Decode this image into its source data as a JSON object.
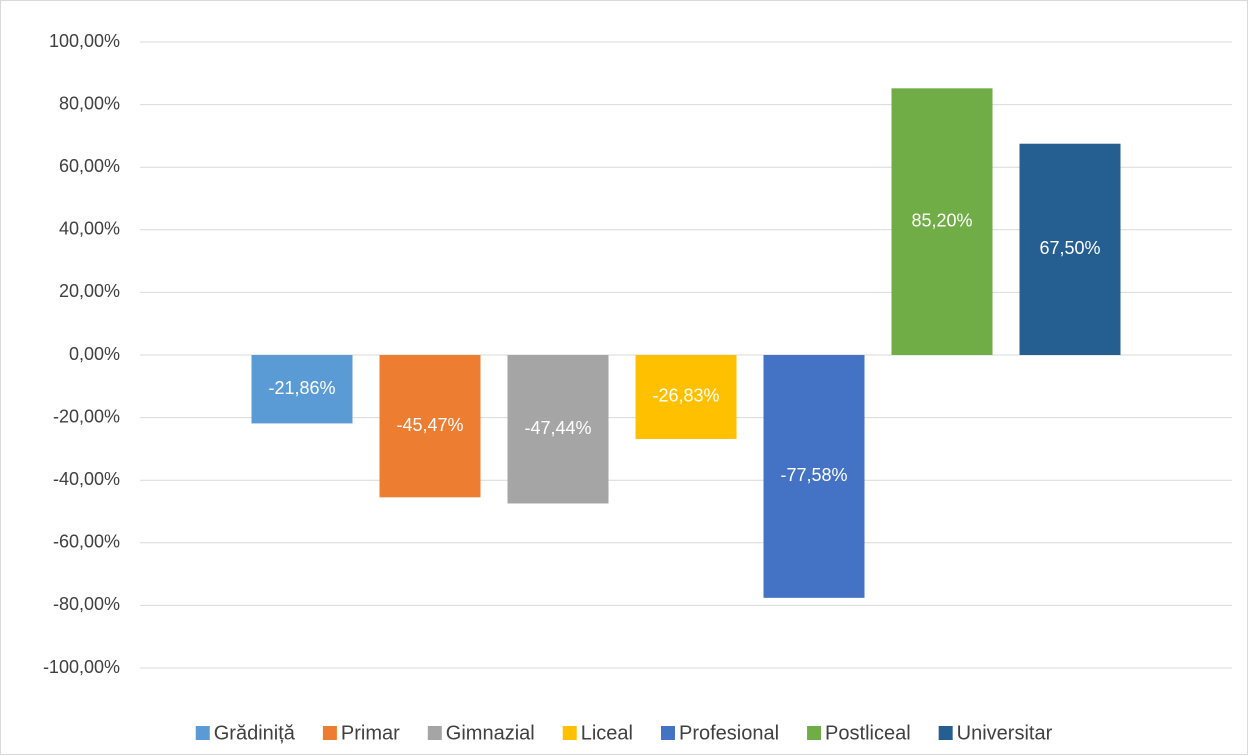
{
  "chart_data": {
    "type": "bar",
    "series": [
      {
        "name": "Grădiniță",
        "color": "#5b9bd5",
        "values": [
          -21.86
        ],
        "value_labels": [
          "-21,86%"
        ]
      },
      {
        "name": "Primar",
        "color": "#ed7d31",
        "values": [
          -45.47
        ],
        "value_labels": [
          "-45,47%"
        ]
      },
      {
        "name": "Gimnazial",
        "color": "#a5a5a5",
        "values": [
          -47.44
        ],
        "value_labels": [
          "-47,44%"
        ]
      },
      {
        "name": "Liceal",
        "color": "#ffc000",
        "values": [
          -26.83
        ],
        "value_labels": [
          "-26,83%"
        ]
      },
      {
        "name": "Profesional",
        "color": "#4472c4",
        "values": [
          -77.58
        ],
        "value_labels": [
          "-77,58%"
        ]
      },
      {
        "name": "Postliceal",
        "color": "#70ad47",
        "values": [
          85.2
        ],
        "value_labels": [
          "85,20%"
        ]
      },
      {
        "name": "Universitar",
        "color": "#255e91",
        "values": [
          67.5
        ],
        "value_labels": [
          "67,50%"
        ]
      }
    ],
    "ylim": [
      -100,
      100
    ],
    "yticks": [
      {
        "value": -100,
        "label": "-100,00%"
      },
      {
        "value": -80,
        "label": "-80,00%"
      },
      {
        "value": -60,
        "label": "-60,00%"
      },
      {
        "value": -40,
        "label": "-40,00%"
      },
      {
        "value": -20,
        "label": "-20,00%"
      },
      {
        "value": 0,
        "label": "0,00%"
      },
      {
        "value": 20,
        "label": "20,00%"
      },
      {
        "value": 40,
        "label": "40,00%"
      },
      {
        "value": 60,
        "label": "60,00%"
      },
      {
        "value": 80,
        "label": "80,00%"
      },
      {
        "value": 100,
        "label": "100,00%"
      }
    ],
    "grid": true,
    "legend": "bottom"
  }
}
